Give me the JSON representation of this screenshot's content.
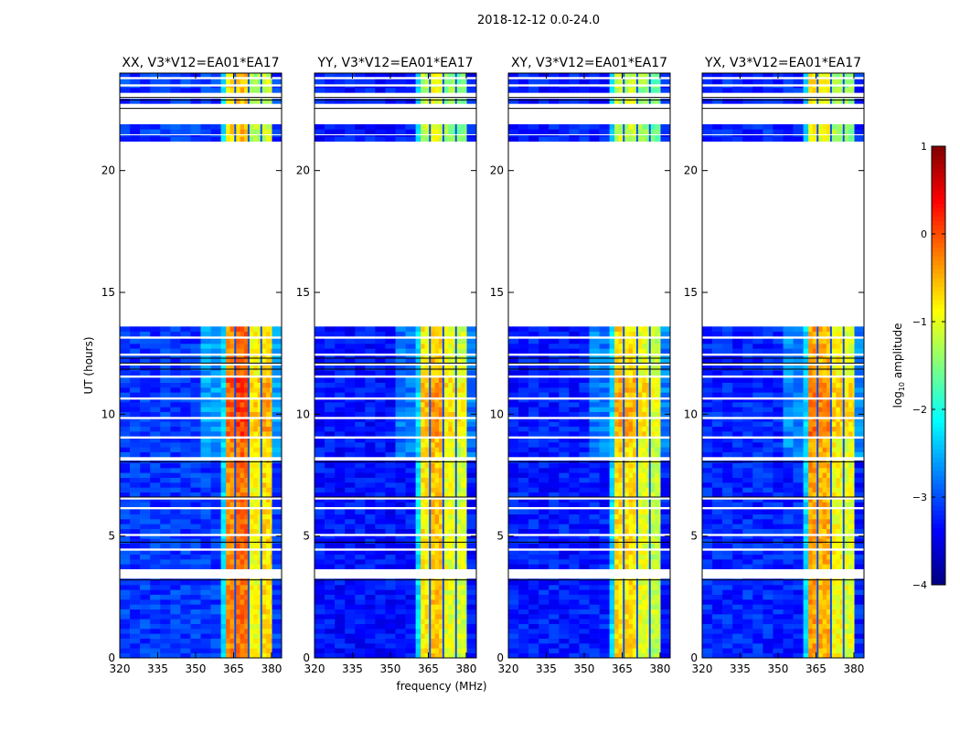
{
  "chart_data": {
    "type": "heatmap",
    "title": "2018-12-12 0.0-24.0",
    "xlabel": "frequency (MHz)",
    "ylabel": "UT (hours)",
    "xlim": [
      320,
      384
    ],
    "ylim": [
      0,
      24
    ],
    "xticks": [
      320,
      335,
      350,
      365,
      380
    ],
    "yticks": [
      0,
      5,
      10,
      15,
      20
    ],
    "colorbar": {
      "label": "log10 amplitude",
      "label_main": "log",
      "label_sub": "10",
      "label_rest": " amplitude",
      "range": [
        -4,
        1
      ],
      "ticks": [
        1,
        0,
        -1,
        -2,
        -3,
        -4
      ],
      "colormap": "jet"
    },
    "time_segments_with_data": [
      [
        0,
        3.25
      ],
      [
        3.65,
        4.4
      ],
      [
        4.5,
        5.0
      ],
      [
        5.1,
        6.1
      ],
      [
        6.2,
        6.5
      ],
      [
        6.6,
        8.1
      ],
      [
        8.25,
        9.0
      ],
      [
        9.1,
        9.8
      ],
      [
        9.9,
        10.6
      ],
      [
        10.7,
        11.5
      ],
      [
        11.6,
        12.0
      ],
      [
        12.1,
        12.4
      ],
      [
        12.5,
        13.1
      ],
      [
        13.2,
        13.6
      ],
      [
        21.2,
        21.45
      ],
      [
        21.5,
        21.9
      ],
      [
        22.75,
        22.95
      ],
      [
        23.2,
        23.45
      ],
      [
        23.55,
        23.75
      ],
      [
        23.85,
        24
      ]
    ],
    "black_flag_lines": [
      3.2,
      4.75,
      6.6,
      8.05,
      11.85,
      12.1,
      12.3,
      22.55,
      22.9,
      23.0
    ],
    "freq_bands": [
      {
        "range": [
          320,
          360
        ],
        "kind": "background"
      },
      {
        "range": [
          360,
          362
        ],
        "kind": "edge"
      },
      {
        "range": [
          362,
          365.3
        ],
        "kind": "rfi",
        "index": 0
      },
      {
        "range": [
          365.3,
          366
        ],
        "kind": "notch"
      },
      {
        "range": [
          366,
          370.6
        ],
        "kind": "rfi",
        "index": 1
      },
      {
        "range": [
          370.6,
          371.3
        ],
        "kind": "notch"
      },
      {
        "range": [
          371.3,
          375.6
        ],
        "kind": "rfi",
        "index": 2
      },
      {
        "range": [
          375.6,
          376.3
        ],
        "kind": "notch"
      },
      {
        "range": [
          376.3,
          380.2
        ],
        "kind": "rfi",
        "index": 3
      },
      {
        "range": [
          380.2,
          384
        ],
        "kind": "background"
      }
    ],
    "panels": [
      {
        "title": "XX, V3*V12=EA01*EA17",
        "background_level": -3.1,
        "rfi_levels": [
          -0.3,
          -0.15,
          -0.9,
          -0.7
        ]
      },
      {
        "title": "YY, V3*V12=EA01*EA17",
        "background_level": -3.3,
        "rfi_levels": [
          -0.8,
          -0.6,
          -1.0,
          -1.1
        ]
      },
      {
        "title": "XY, V3*V12=EA01*EA17",
        "background_level": -3.25,
        "rfi_levels": [
          -0.7,
          -0.75,
          -1.0,
          -1.2
        ]
      },
      {
        "title": "YX, V3*V12=EA01*EA17",
        "background_level": -3.2,
        "rfi_levels": [
          -0.4,
          -0.5,
          -0.9,
          -1.0
        ]
      }
    ]
  }
}
